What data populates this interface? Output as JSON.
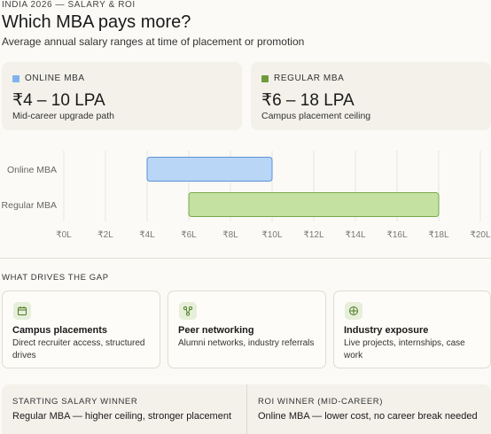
{
  "header": {
    "eyebrow": "INDIA 2026 — SALARY & ROI",
    "title": "Which MBA pays more?",
    "subtitle": "Average annual salary ranges at time of placement or promotion"
  },
  "stats": [
    {
      "label": "ONLINE MBA",
      "value": "₹4 – 10 LPA",
      "note": "Mid-career upgrade path",
      "color": "#7fb2ec"
    },
    {
      "label": "REGULAR MBA",
      "value": "₹6 – 18 LPA",
      "note": "Campus placement ceiling",
      "color": "#6f9a3a"
    }
  ],
  "chart_data": {
    "type": "bar",
    "orientation": "horizontal-range",
    "categories": [
      "Online MBA",
      "Regular MBA"
    ],
    "series": [
      {
        "values": [
          [
            4,
            10
          ],
          [
            6,
            18
          ]
        ]
      }
    ],
    "colors": {
      "Online MBA": {
        "fill": "#b9d6f7",
        "stroke": "#5b93d6"
      },
      "Regular MBA": {
        "fill": "#c4e1a2",
        "stroke": "#7aa849"
      }
    },
    "xticks": [
      0,
      2,
      4,
      6,
      8,
      10,
      12,
      14,
      16,
      18,
      20
    ],
    "xtick_labels": [
      "₹0L",
      "₹2L",
      "₹4L",
      "₹6L",
      "₹8L",
      "₹10L",
      "₹12L",
      "₹14L",
      "₹16L",
      "₹18L",
      "₹20L"
    ],
    "xlim": [
      0,
      20
    ],
    "grid": true,
    "title": "",
    "xlabel": "",
    "ylabel": ""
  },
  "drivers": {
    "section_title": "WHAT DRIVES THE GAP",
    "items": [
      {
        "icon": "calendar-icon",
        "title": "Campus placements",
        "desc": "Direct recruiter access, structured drives"
      },
      {
        "icon": "network-icon",
        "title": "Peer networking",
        "desc": "Alumni networks, industry referrals"
      },
      {
        "icon": "globe-icon",
        "title": "Industry exposure",
        "desc": "Live projects, internships, case work"
      }
    ]
  },
  "winners": [
    {
      "label": "STARTING SALARY WINNER",
      "text": "Regular MBA — higher ceiling, stronger placement"
    },
    {
      "label": "ROI WINNER (MID-CAREER)",
      "text": "Online MBA — lower cost, no career break needed"
    }
  ]
}
